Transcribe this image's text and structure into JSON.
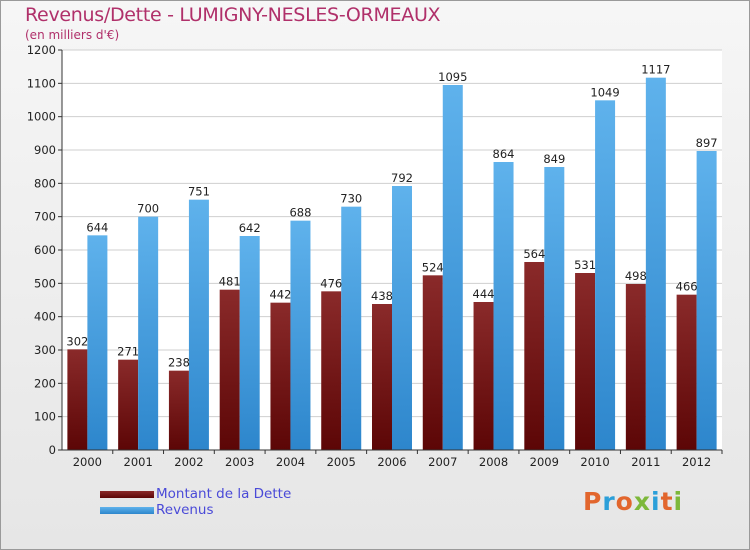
{
  "title": "Revenus/Dette - LUMIGNY-NESLES-ORMEAUX",
  "subtitle": "(en milliers d'€)",
  "logo": {
    "text": "Proxiti",
    "colors": [
      "#e2662d",
      "#2b9fd9",
      "#e2662d",
      "#7db83a",
      "#2b9fd9",
      "#e2662d",
      "#7db83a"
    ]
  },
  "chart_data": {
    "type": "bar",
    "title": "Revenus/Dette - LUMIGNY-NESLES-ORMEAUX",
    "subtitle": "(en milliers d'€)",
    "categories": [
      "2000",
      "2001",
      "2002",
      "2003",
      "2004",
      "2005",
      "2006",
      "2007",
      "2008",
      "2009",
      "2010",
      "2011",
      "2012"
    ],
    "series": [
      {
        "name": "Montant de la Dette",
        "color": "#7a1818",
        "values": [
          302,
          271,
          238,
          481,
          442,
          476,
          438,
          524,
          444,
          564,
          531,
          498,
          466
        ]
      },
      {
        "name": "Revenus",
        "color": "#4aa3e3",
        "values": [
          644,
          700,
          751,
          642,
          688,
          730,
          792,
          1095,
          864,
          849,
          1049,
          1117,
          897
        ]
      }
    ],
    "ylim": [
      0,
      1200
    ],
    "yticks": [
      0,
      100,
      200,
      300,
      400,
      500,
      600,
      700,
      800,
      900,
      1000,
      1100,
      1200
    ],
    "grid": true,
    "legend": "bottom-left"
  }
}
